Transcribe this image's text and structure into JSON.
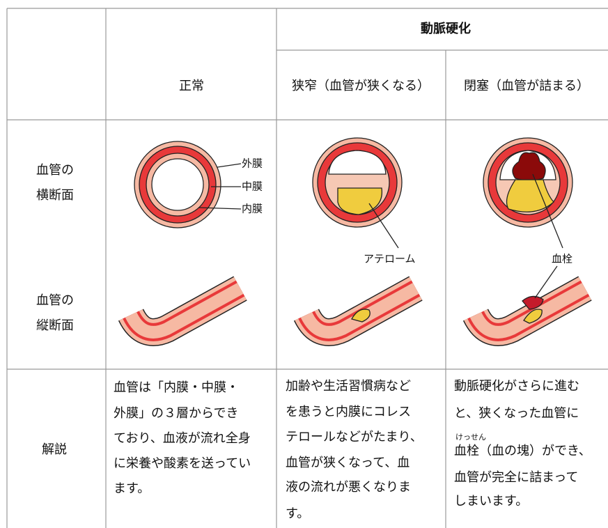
{
  "header": {
    "group": "動脈硬化",
    "columns": [
      "正常",
      "狭窄（血管が狭くなる）",
      "閉塞（血管が詰まる）"
    ]
  },
  "rows": [
    [
      "血管の",
      "横断面"
    ],
    [
      "血管の",
      "縦断面"
    ],
    [
      "解説"
    ]
  ],
  "labels": {
    "layers": [
      "外膜",
      "中膜",
      "内膜"
    ],
    "atheroma": "アテローム",
    "thrombus": "血栓"
  },
  "explanations": [
    [
      "血管は「内膜・中膜・",
      "外膜」の３層からでき",
      "ており、血液が流れ全身",
      "に栄養や酸素を送ってい",
      "ます。"
    ],
    [
      "加齢や生活習慣病など",
      "を患うと内膜にコレス",
      "テロールなどがたまり、",
      "血管が狭くなって、血",
      "液の流れが悪くなりま",
      "す。"
    ],
    [
      "動脈硬化がさらに進む",
      "と、狭くなった血管に",
      "血栓（血の塊）ができ、",
      "血管が完全に詰まって",
      "しまいます。"
    ]
  ],
  "ruby": "けっせん"
}
